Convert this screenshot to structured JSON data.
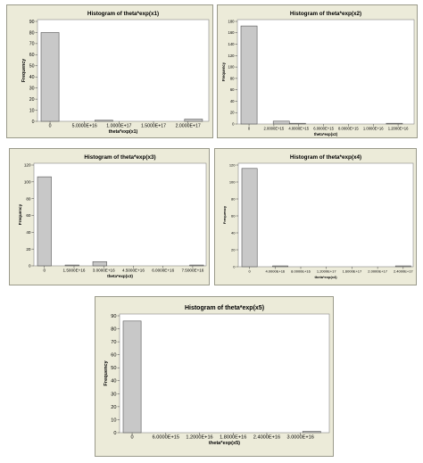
{
  "chart_data": [
    {
      "type": "bar",
      "title": "Histogram of theta*exp(x1)",
      "xlabel": "theta*exp(x1)",
      "ylabel": "Frequency",
      "ylim": [
        0,
        90
      ],
      "yticks": [
        "0",
        "10",
        "20",
        "30",
        "40",
        "50",
        "60",
        "70",
        "80",
        "90"
      ],
      "xticks": [
        "0",
        "5.0000E+16",
        "1.0000E+17",
        "1.5000E+17",
        "2.0000E+17"
      ],
      "xrange": [
        -1.3e+16,
        2.25e+17
      ],
      "bins": [
        {
          "start": -1.3e+16,
          "end": 1.3e+16,
          "count": 80
        },
        {
          "start": 1.3e+16,
          "end": 3.9e+16,
          "count": 0
        },
        {
          "start": 3.9e+16,
          "end": 6.5e+16,
          "count": 0
        },
        {
          "start": 6.5e+16,
          "end": 9.1e+16,
          "count": 1
        },
        {
          "start": 9.1e+16,
          "end": 1.17e+17,
          "count": 0
        },
        {
          "start": 1.17e+17,
          "end": 1.43e+17,
          "count": 0
        },
        {
          "start": 1.43e+17,
          "end": 1.69e+17,
          "count": 0
        },
        {
          "start": 1.69e+17,
          "end": 1.95e+17,
          "count": 0
        },
        {
          "start": 1.95e+17,
          "end": 2.21e+17,
          "count": 2
        }
      ]
    },
    {
      "type": "bar",
      "title": "Histogram of theta*exp(x2)",
      "xlabel": "theta*exp(x2)",
      "ylabel": "Frequency",
      "ylim": [
        0,
        180
      ],
      "yticks": [
        "0",
        "20",
        "40",
        "60",
        "80",
        "100",
        "120",
        "140",
        "160",
        "180"
      ],
      "xticks": [
        "0",
        "2.0000E+15",
        "4.0000E+15",
        "6.0000E+15",
        "8.0000E+15",
        "1.0000E+16",
        "1.2000E+16"
      ],
      "xrange": [
        -650000000000000.0,
        1.3e+16
      ],
      "bins": [
        {
          "start": -650000000000000.0,
          "end": 650000000000000.0,
          "count": 172
        },
        {
          "start": 650000000000000.0,
          "end": 1950000000000000.0,
          "count": 0
        },
        {
          "start": 1950000000000000.0,
          "end": 3250000000000000.0,
          "count": 5
        },
        {
          "start": 3250000000000000.0,
          "end": 4550000000000000.0,
          "count": 1
        },
        {
          "start": 4550000000000000.0,
          "end": 5850000000000000.0,
          "count": 0
        },
        {
          "start": 5850000000000000.0,
          "end": 7150000000000000.0,
          "count": 0
        },
        {
          "start": 7150000000000000.0,
          "end": 8450000000000000.0,
          "count": 0
        },
        {
          "start": 8450000000000000.0,
          "end": 9750000000000000.0,
          "count": 0
        },
        {
          "start": 9750000000000000.0,
          "end": 1.105e+16,
          "count": 0
        },
        {
          "start": 1.105e+16,
          "end": 1.235e+16,
          "count": 1
        }
      ]
    },
    {
      "type": "bar",
      "title": "Histogram of theta*exp(x3)",
      "xlabel": "theta*exp(x3)",
      "ylabel": "Frequency",
      "ylim": [
        0,
        120
      ],
      "yticks": [
        "0",
        "20",
        "40",
        "60",
        "80",
        "100",
        "120"
      ],
      "xticks": [
        "0",
        "1.5000E+16",
        "3.0000E+16",
        "4.5000E+16",
        "6.0000E+16",
        "7.5000E+16"
      ],
      "xrange": [
        -3500000000000000.0,
        8e+16
      ],
      "bins": [
        {
          "start": -3500000000000000.0,
          "end": 3500000000000000.0,
          "count": 106
        },
        {
          "start": 3500000000000000.0,
          "end": 1.05e+16,
          "count": 0
        },
        {
          "start": 1.05e+16,
          "end": 1.75e+16,
          "count": 1
        },
        {
          "start": 1.75e+16,
          "end": 2.45e+16,
          "count": 0
        },
        {
          "start": 2.45e+16,
          "end": 3.15e+16,
          "count": 5
        },
        {
          "start": 3.15e+16,
          "end": 3.85e+16,
          "count": 0
        },
        {
          "start": 3.85e+16,
          "end": 4.55e+16,
          "count": 0
        },
        {
          "start": 4.55e+16,
          "end": 5.25e+16,
          "count": 0
        },
        {
          "start": 5.25e+16,
          "end": 5.95e+16,
          "count": 0
        },
        {
          "start": 5.95e+16,
          "end": 6.65e+16,
          "count": 0
        },
        {
          "start": 6.65e+16,
          "end": 7.35e+16,
          "count": 0
        },
        {
          "start": 7.35e+16,
          "end": 8.05e+16,
          "count": 1
        }
      ]
    },
    {
      "type": "bar",
      "title": "Histogram of theta*exp(x4)",
      "xlabel": "theta*exp(x4)",
      "ylabel": "Frequency",
      "ylim": [
        0,
        120
      ],
      "yticks": [
        "0",
        "20",
        "40",
        "60",
        "80",
        "100",
        "120"
      ],
      "xticks": [
        "0",
        "4.0000E+16",
        "8.0000E+16",
        "1.2000E+17",
        "1.6000E+17",
        "2.0000E+17",
        "2.4000E+17"
      ],
      "xrange": [
        -1.2e+16,
        2.5e+17
      ],
      "bins": [
        {
          "start": -1.2e+16,
          "end": 1.2e+16,
          "count": 116
        },
        {
          "start": 1.2e+16,
          "end": 3.6e+16,
          "count": 0
        },
        {
          "start": 3.6e+16,
          "end": 6e+16,
          "count": 1
        },
        {
          "start": 6e+16,
          "end": 8.4e+16,
          "count": 0
        },
        {
          "start": 8.4e+16,
          "end": 1.08e+17,
          "count": 0
        },
        {
          "start": 1.08e+17,
          "end": 1.32e+17,
          "count": 0
        },
        {
          "start": 1.32e+17,
          "end": 1.56e+17,
          "count": 0
        },
        {
          "start": 1.56e+17,
          "end": 1.8e+17,
          "count": 0
        },
        {
          "start": 1.8e+17,
          "end": 2.04e+17,
          "count": 0
        },
        {
          "start": 2.04e+17,
          "end": 2.28e+17,
          "count": 0
        },
        {
          "start": 2.28e+17,
          "end": 2.52e+17,
          "count": 1
        }
      ]
    },
    {
      "type": "bar",
      "title": "Histogram of theta*exp(x5)",
      "xlabel": "theta*exp(x5)",
      "ylabel": "Frequency",
      "ylim": [
        0,
        90
      ],
      "yticks": [
        "0",
        "10",
        "20",
        "30",
        "40",
        "50",
        "60",
        "70",
        "80",
        "90"
      ],
      "xticks": [
        "0",
        "6.0000E+15",
        "1.2000E+16",
        "1.8000E+16",
        "2.4000E+16",
        "3.0000E+16"
      ],
      "xrange": [
        -1600000000000000.0,
        3.45e+16
      ],
      "bins": [
        {
          "start": -1600000000000000.0,
          "end": 1600000000000000.0,
          "count": 86
        },
        {
          "start": 1600000000000000.0,
          "end": 4800000000000000.0,
          "count": 0
        },
        {
          "start": 4800000000000000.0,
          "end": 8000000000000000.0,
          "count": 0
        },
        {
          "start": 8000000000000000.0,
          "end": 1.12e+16,
          "count": 0
        },
        {
          "start": 1.12e+16,
          "end": 1.44e+16,
          "count": 0
        },
        {
          "start": 1.44e+16,
          "end": 1.76e+16,
          "count": 0
        },
        {
          "start": 1.76e+16,
          "end": 2.08e+16,
          "count": 0
        },
        {
          "start": 2.08e+16,
          "end": 2.4e+16,
          "count": 0
        },
        {
          "start": 2.4e+16,
          "end": 2.72e+16,
          "count": 0
        },
        {
          "start": 2.72e+16,
          "end": 3.04e+16,
          "count": 0
        },
        {
          "start": 3.04e+16,
          "end": 3.36e+16,
          "count": 1
        }
      ]
    }
  ],
  "colors": {
    "panel_background": "#ecebd9",
    "plot_background": "#ffffff",
    "bar_fill": "#c8c8c8",
    "bar_stroke": "#555555"
  }
}
